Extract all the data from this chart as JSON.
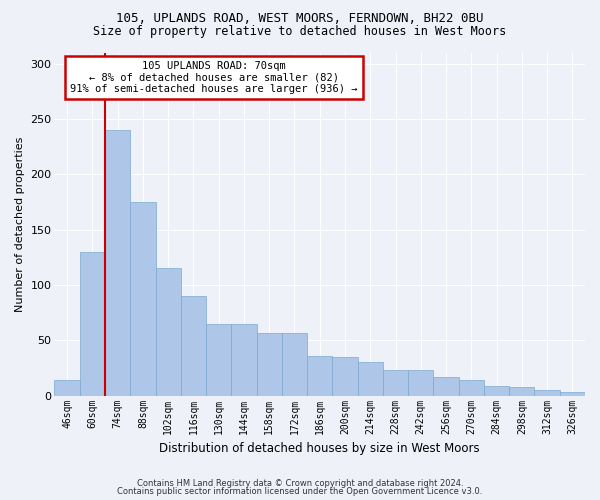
{
  "title1": "105, UPLANDS ROAD, WEST MOORS, FERNDOWN, BH22 0BU",
  "title2": "Size of property relative to detached houses in West Moors",
  "xlabel": "Distribution of detached houses by size in West Moors",
  "ylabel": "Number of detached properties",
  "footer1": "Contains HM Land Registry data © Crown copyright and database right 2024.",
  "footer2": "Contains public sector information licensed under the Open Government Licence v3.0.",
  "annotation_line1": "105 UPLANDS ROAD: 70sqm",
  "annotation_line2": "← 8% of detached houses are smaller (82)",
  "annotation_line3": "91% of semi-detached houses are larger (936) →",
  "bar_labels": [
    "46sqm",
    "60sqm",
    "74sqm",
    "88sqm",
    "102sqm",
    "116sqm",
    "130sqm",
    "144sqm",
    "158sqm",
    "172sqm",
    "186sqm",
    "200sqm",
    "214sqm",
    "228sqm",
    "242sqm",
    "256sqm",
    "270sqm",
    "284sqm",
    "298sqm",
    "312sqm",
    "326sqm"
  ],
  "bar_values": [
    14,
    130,
    240,
    175,
    115,
    90,
    65,
    65,
    57,
    57,
    36,
    35,
    30,
    23,
    23,
    17,
    14,
    9,
    8,
    5,
    3
  ],
  "bar_color": "#aec6e8",
  "bar_edge_color": "#7aaad0",
  "vline_x": 1.5,
  "vline_color": "#cc0000",
  "annotation_box_color": "#cc0000",
  "background_color": "#eef2f8",
  "grid_color": "#ffffff",
  "ylim": [
    0,
    310
  ],
  "yticks": [
    0,
    50,
    100,
    150,
    200,
    250,
    300
  ]
}
